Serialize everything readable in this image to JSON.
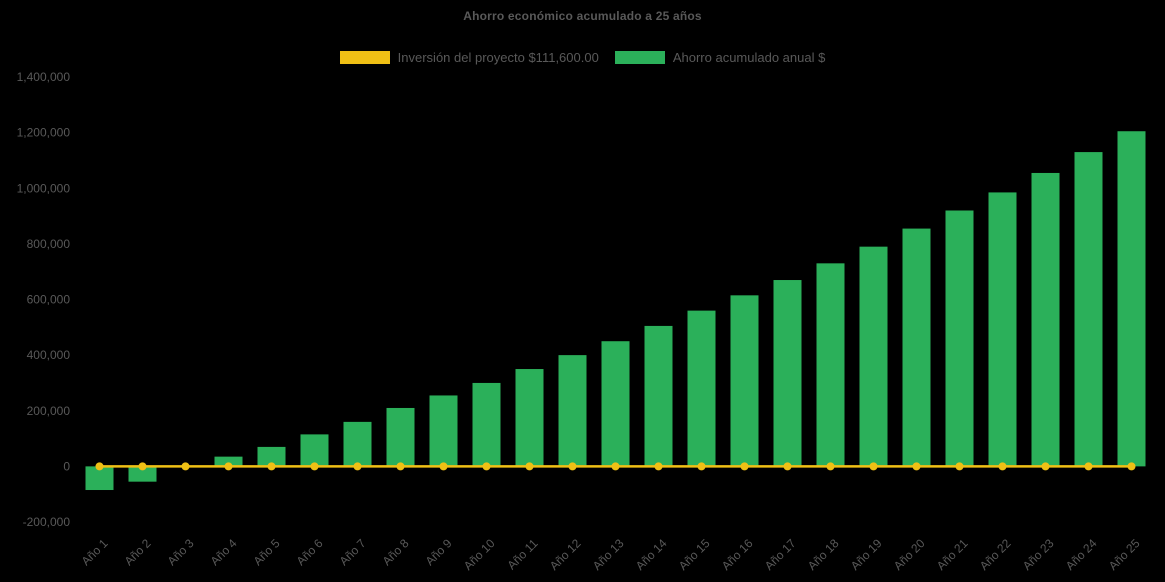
{
  "chart_data": {
    "type": "bar",
    "title": "Ahorro económico acumulado a 25 años",
    "categories": [
      "Año 1",
      "Año 2",
      "Año 3",
      "Año 4",
      "Año 5",
      "Año 6",
      "Año 7",
      "Año 8",
      "Año 9",
      "Año 10",
      "Año 11",
      "Año 12",
      "Año 13",
      "Año 14",
      "Año 15",
      "Año 16",
      "Año 17",
      "Año 18",
      "Año 19",
      "Año 20",
      "Año 21",
      "Año 22",
      "Año 23",
      "Año 24",
      "Año 25"
    ],
    "series": [
      {
        "name": "Inversión del proyecto $111,600.00",
        "type": "line",
        "color": "#F0C015",
        "values": [
          0,
          0,
          0,
          0,
          0,
          0,
          0,
          0,
          0,
          0,
          0,
          0,
          0,
          0,
          0,
          0,
          0,
          0,
          0,
          0,
          0,
          0,
          0,
          0,
          0
        ]
      },
      {
        "name": "Ahorro acumulado anual $",
        "type": "bar",
        "color": "#2BB05A",
        "values": [
          -85000,
          -55000,
          0,
          35000,
          70000,
          115000,
          160000,
          210000,
          255000,
          300000,
          350000,
          400000,
          450000,
          505000,
          560000,
          615000,
          670000,
          730000,
          790000,
          855000,
          920000,
          985000,
          1055000,
          1130000,
          1205000
        ]
      }
    ],
    "xlabel": "",
    "ylabel": "",
    "ylim": [
      -200000,
      1400000
    ],
    "y_ticks": [
      -200000,
      0,
      200000,
      400000,
      600000,
      800000,
      1000000,
      1200000,
      1400000
    ],
    "grid": false,
    "legend_position": "top",
    "background": "#000000",
    "text_color": "#595959"
  }
}
